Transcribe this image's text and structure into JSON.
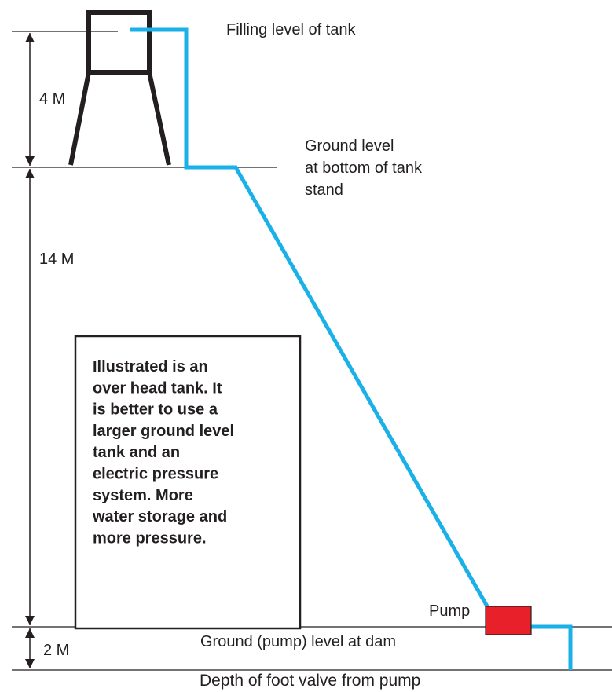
{
  "labels": {
    "filling_level": "Filling level of tank",
    "ground_level": [
      "Ground level",
      "at bottom of tank",
      "stand"
    ],
    "dim_tank": "4 M",
    "dim_stand": "14 M",
    "dim_foot": "2 M",
    "pump": "Pump",
    "pump_level": "Ground (pump) level at dam",
    "foot_valve": "Depth of foot valve from pump"
  },
  "note": [
    "Illustrated is an",
    "over head tank.  It",
    "is better to use a",
    "larger ground level",
    "tank and an",
    "electric pressure",
    "system.  More",
    "water storage and",
    "more pressure."
  ]
}
